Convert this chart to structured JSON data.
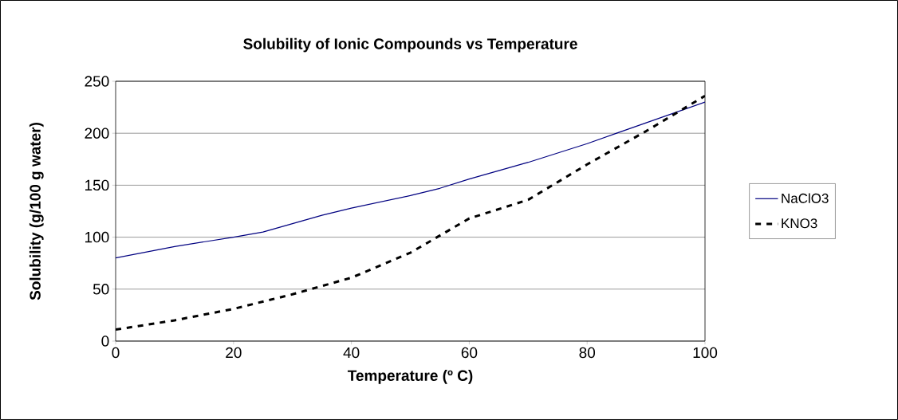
{
  "chart_data": {
    "type": "line",
    "title": "Solubility of Ionic Compounds vs Temperature",
    "xlabel": "Temperature (º C)",
    "ylabel": "Solubility (g/100 g water)",
    "series": [
      {
        "name": "NaClO3",
        "color": "#000080",
        "line_style": "solid",
        "x": [
          0,
          10,
          20,
          25,
          30,
          35,
          40,
          50,
          55,
          60,
          70,
          80,
          85,
          90,
          100
        ],
        "values": [
          80,
          91,
          100,
          105,
          113,
          121,
          128,
          140,
          147,
          156,
          172,
          190,
          200,
          210,
          230
        ]
      },
      {
        "name": "KNO3",
        "color": "#000000",
        "line_style": "dashed",
        "x": [
          0,
          10,
          20,
          30,
          40,
          50,
          60,
          70,
          80,
          90,
          100
        ],
        "values": [
          11,
          20,
          31,
          45,
          61,
          85,
          118,
          136,
          170,
          202,
          236
        ]
      }
    ],
    "xlim": [
      0,
      100
    ],
    "xticks": [
      0,
      20,
      40,
      60,
      80,
      100
    ],
    "ylim": [
      0,
      250
    ],
    "yticks": [
      0,
      50,
      100,
      150,
      200,
      250
    ],
    "grid": "y",
    "legend": "right"
  }
}
